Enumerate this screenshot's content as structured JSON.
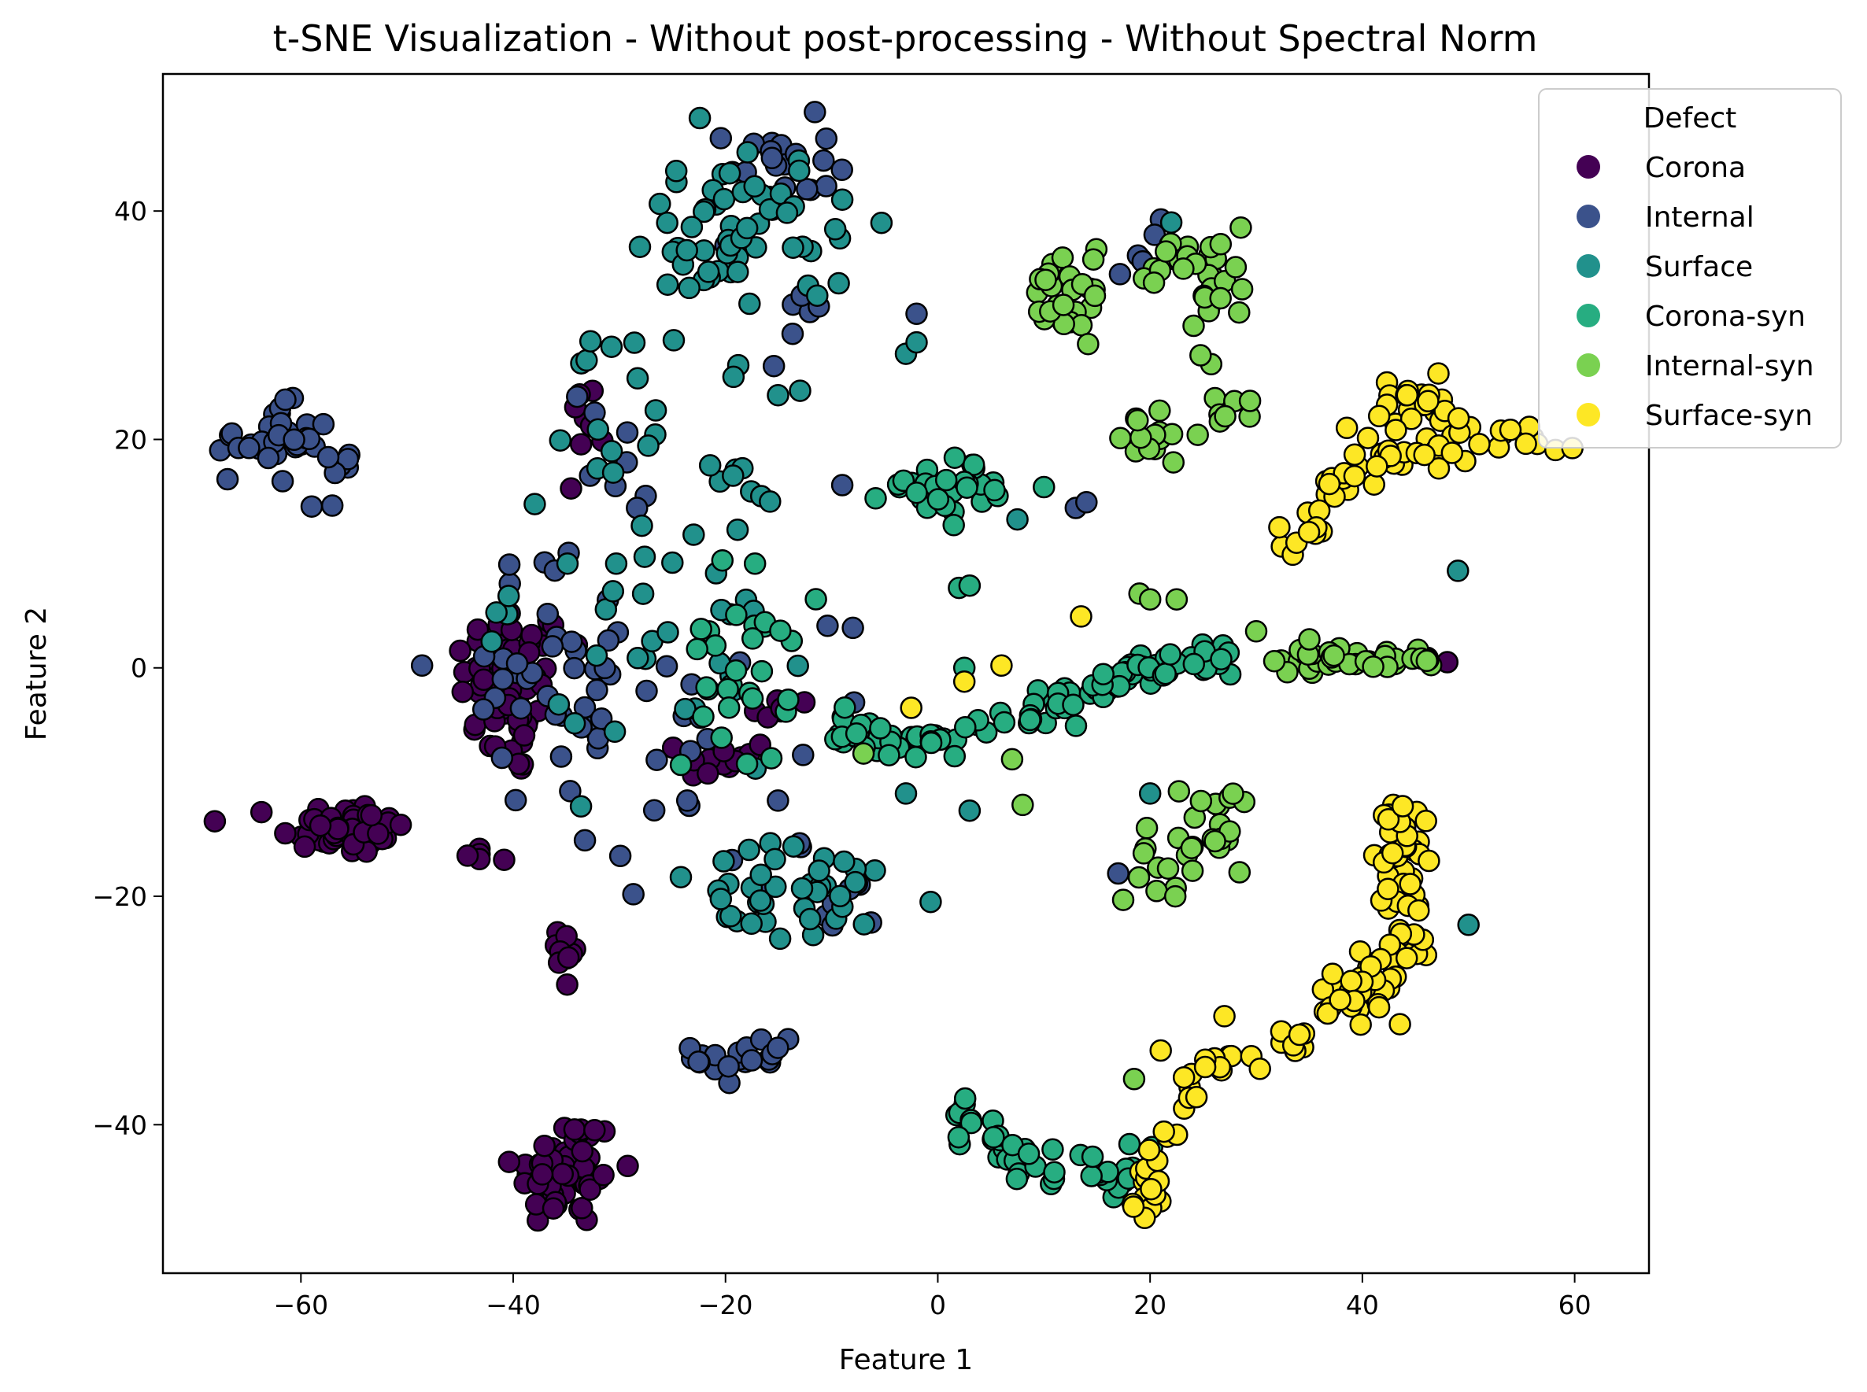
{
  "chart_data": {
    "type": "scatter",
    "title": "t-SNE Visualization - Without post-processing - Without Spectral Norm",
    "xlabel": "Feature 1",
    "ylabel": "Feature 2",
    "xlim": [
      -73,
      67
    ],
    "ylim": [
      -53,
      52
    ],
    "xticks": [
      -60,
      -40,
      -20,
      0,
      20,
      40,
      60
    ],
    "yticks": [
      -40,
      -20,
      0,
      20,
      40
    ],
    "grid": false,
    "legend": {
      "title": "Defect",
      "placement": "top-right"
    },
    "series": [
      {
        "name": "Corona",
        "color": "#440154",
        "clusters": [
          {
            "cx": -40,
            "cy": -2,
            "sx": 2.5,
            "sy": 4,
            "n": 60
          },
          {
            "cx": -56,
            "cy": -14,
            "sx": 3,
            "sy": 1.2,
            "n": 50
          },
          {
            "cx": -35,
            "cy": -44,
            "sx": 2.5,
            "sy": 2.5,
            "n": 55
          },
          {
            "cx": -35,
            "cy": -25,
            "sx": 0.6,
            "sy": 2,
            "n": 10
          },
          {
            "cx": -33,
            "cy": 22,
            "sx": 1,
            "sy": 1.5,
            "n": 8
          },
          {
            "cx": -20,
            "cy": -8,
            "sx": 2,
            "sy": 1,
            "n": 12
          },
          {
            "cx": -15,
            "cy": -4,
            "sx": 1.5,
            "sy": 0.8,
            "n": 6
          },
          {
            "cx": -42,
            "cy": -16,
            "sx": 1.5,
            "sy": 1,
            "n": 5
          }
        ],
        "points": [
          [
            48,
            0.5
          ],
          [
            -45,
            1.5
          ],
          [
            -34,
            2
          ]
        ]
      },
      {
        "name": "Internal",
        "color": "#3b528b",
        "clusters": [
          {
            "cx": -63,
            "cy": 20,
            "sx": 2.5,
            "sy": 1.5,
            "n": 30
          },
          {
            "cx": -58,
            "cy": 18,
            "sx": 1.5,
            "sy": 2,
            "n": 12
          },
          {
            "cx": -15,
            "cy": 44,
            "sx": 2.5,
            "sy": 2,
            "n": 20
          },
          {
            "cx": -18,
            "cy": -34,
            "sx": 2.5,
            "sy": 1.5,
            "n": 20
          },
          {
            "cx": -36,
            "cy": 0,
            "sx": 5,
            "sy": 5,
            "n": 40
          },
          {
            "cx": -22,
            "cy": -8,
            "sx": 6,
            "sy": 6,
            "n": 25
          },
          {
            "cx": -31,
            "cy": 18,
            "sx": 2,
            "sy": 4,
            "n": 8
          },
          {
            "cx": -13,
            "cy": 30,
            "sx": 1.5,
            "sy": 2,
            "n": 6
          },
          {
            "cx": -10,
            "cy": -21,
            "sx": 2,
            "sy": 1.5,
            "n": 8
          },
          {
            "cx": 20,
            "cy": 36,
            "sx": 1.5,
            "sy": 2,
            "n": 6
          }
        ],
        "points": [
          [
            -9,
            16
          ],
          [
            -8,
            3.5
          ],
          [
            13,
            14
          ],
          [
            14,
            14.5
          ],
          [
            -2,
            31
          ],
          [
            17,
            -18
          ],
          [
            -20,
            37
          ]
        ]
      },
      {
        "name": "Surface",
        "color": "#21918c",
        "clusters": [
          {
            "cx": -22,
            "cy": 38,
            "sx": 3.5,
            "sy": 4,
            "n": 40
          },
          {
            "cx": -28,
            "cy": 8,
            "sx": 6,
            "sy": 8,
            "n": 35
          },
          {
            "cx": -13,
            "cy": -20,
            "sx": 7,
            "sy": 2.2,
            "n": 40
          },
          {
            "cx": -13,
            "cy": 38,
            "sx": 4,
            "sy": 5,
            "n": 20
          },
          {
            "cx": -20,
            "cy": 8,
            "sx": 4,
            "sy": 7,
            "n": 20
          },
          {
            "cx": -30,
            "cy": 27,
            "sx": 2,
            "sy": 1.5,
            "n": 6
          }
        ],
        "points": [
          [
            -3,
            27.5
          ],
          [
            -2,
            28.5
          ],
          [
            7.5,
            13
          ],
          [
            49,
            8.5
          ],
          [
            50,
            -22.5
          ],
          [
            20,
            -11
          ],
          [
            22,
            39
          ],
          [
            3,
            -12.5
          ],
          [
            -3,
            -11
          ],
          [
            -9,
            41
          ]
        ]
      },
      {
        "name": "Corona-syn",
        "color": "#27ad81",
        "clusters": [
          {
            "cx": -19,
            "cy": 0,
            "sx": 2.5,
            "sy": 4.5,
            "n": 30
          },
          {
            "cx": 1,
            "cy": 16,
            "sx": 3,
            "sy": 1.2,
            "n": 30
          },
          {
            "cx": 18,
            "cy": -44,
            "sx": 1.5,
            "sy": 1.5,
            "n": 8
          }
        ],
        "segments": [
          {
            "from": [
              -9,
              -5.5
            ],
            "to": [
              -1,
              -6.5
            ],
            "n": 30,
            "jitter": 0.7
          },
          {
            "from": [
              -1,
              -6.5
            ],
            "to": [
              12,
              -3
            ],
            "n": 30,
            "jitter": 0.8
          },
          {
            "from": [
              12,
              -3
            ],
            "to": [
              19,
              0
            ],
            "n": 25,
            "jitter": 0.7
          },
          {
            "from": [
              19,
              0
            ],
            "to": [
              28,
              0.5
            ],
            "n": 25,
            "jitter": 0.8
          },
          {
            "from": [
              1,
              -38
            ],
            "to": [
              8,
              -43.5
            ],
            "n": 20,
            "jitter": 0.8
          },
          {
            "from": [
              8,
              -43.5
            ],
            "to": [
              18,
              -44.5
            ],
            "n": 15,
            "jitter": 0.7
          }
        ],
        "points": [
          [
            2,
            7
          ],
          [
            3,
            7.2
          ],
          [
            2.5,
            0
          ],
          [
            1.5,
            12.5
          ]
        ]
      },
      {
        "name": "Internal-syn",
        "color": "#7ad151",
        "clusters": [
          {
            "cx": 12,
            "cy": 32,
            "sx": 1.8,
            "sy": 2,
            "n": 35
          },
          {
            "cx": 22,
            "cy": -17,
            "sx": 2.5,
            "sy": 2,
            "n": 15
          },
          {
            "cx": 27,
            "cy": -14,
            "sx": 1.5,
            "sy": 2.5,
            "n": 18
          },
          {
            "cx": 20,
            "cy": 20,
            "sx": 1.5,
            "sy": 1.2,
            "n": 8
          },
          {
            "cx": 27,
            "cy": 22.5,
            "sx": 1.5,
            "sy": 1,
            "n": 8
          }
        ],
        "segments": [
          {
            "from": [
              19,
              35
            ],
            "to": [
              24,
              37
            ],
            "n": 12,
            "jitter": 1
          },
          {
            "from": [
              24,
              37
            ],
            "to": [
              29,
              32
            ],
            "n": 15,
            "jitter": 1.2
          },
          {
            "from": [
              26,
              33
            ],
            "to": [
              25,
              27
            ],
            "n": 8,
            "jitter": 1
          },
          {
            "from": [
              32,
              0.5
            ],
            "to": [
              47,
              0.8
            ],
            "n": 40,
            "jitter": 0.5
          },
          {
            "from": [
              21,
              23
            ],
            "to": [
              19,
              19
            ],
            "n": 5,
            "jitter": 0.6
          }
        ],
        "points": [
          [
            19,
            6.5
          ],
          [
            20,
            6
          ],
          [
            22.5,
            6
          ],
          [
            30,
            3.2
          ],
          [
            7,
            -8
          ],
          [
            8,
            -12
          ],
          [
            18.5,
            -36
          ],
          [
            -7,
            -7.5
          ],
          [
            35,
            2.5
          ]
        ]
      },
      {
        "name": "Surface-syn",
        "color": "#fde725",
        "clusters": [
          {
            "cx": 45,
            "cy": 23,
            "sx": 3,
            "sy": 1.5,
            "n": 25
          },
          {
            "cx": 44,
            "cy": -16,
            "sx": 1.3,
            "sy": 2.5,
            "n": 30
          },
          {
            "cx": 44,
            "cy": -21,
            "sx": 1.2,
            "sy": 2.5,
            "n": 25
          },
          {
            "cx": 41,
            "cy": -28,
            "sx": 2,
            "sy": 2,
            "n": 30
          },
          {
            "cx": 19.5,
            "cy": -45,
            "sx": 0.8,
            "sy": 1.5,
            "n": 12
          }
        ],
        "segments": [
          {
            "from": [
              33,
              11
            ],
            "to": [
              41,
              19
            ],
            "n": 25,
            "jitter": 1
          },
          {
            "from": [
              41,
              19
            ],
            "to": [
              60,
              20.5
            ],
            "n": 30,
            "jitter": 1
          },
          {
            "from": [
              19,
              -47
            ],
            "to": [
              24,
              -36
            ],
            "n": 15,
            "jitter": 0.8
          },
          {
            "from": [
              24,
              -36
            ],
            "to": [
              34,
              -33
            ],
            "n": 15,
            "jitter": 1
          },
          {
            "from": [
              34,
              -33
            ],
            "to": [
              39,
              -28
            ],
            "n": 10,
            "jitter": 0.8
          },
          {
            "from": [
              43,
              -12
            ],
            "to": [
              44,
              -14
            ],
            "n": 5,
            "jitter": 0.6
          }
        ],
        "points": [
          [
            13.5,
            4.5
          ],
          [
            6,
            0.2
          ],
          [
            -2.5,
            -3.5
          ],
          [
            2.5,
            -1.2
          ],
          [
            27,
            -30.5
          ],
          [
            21,
            -33.5
          ]
        ]
      }
    ]
  }
}
